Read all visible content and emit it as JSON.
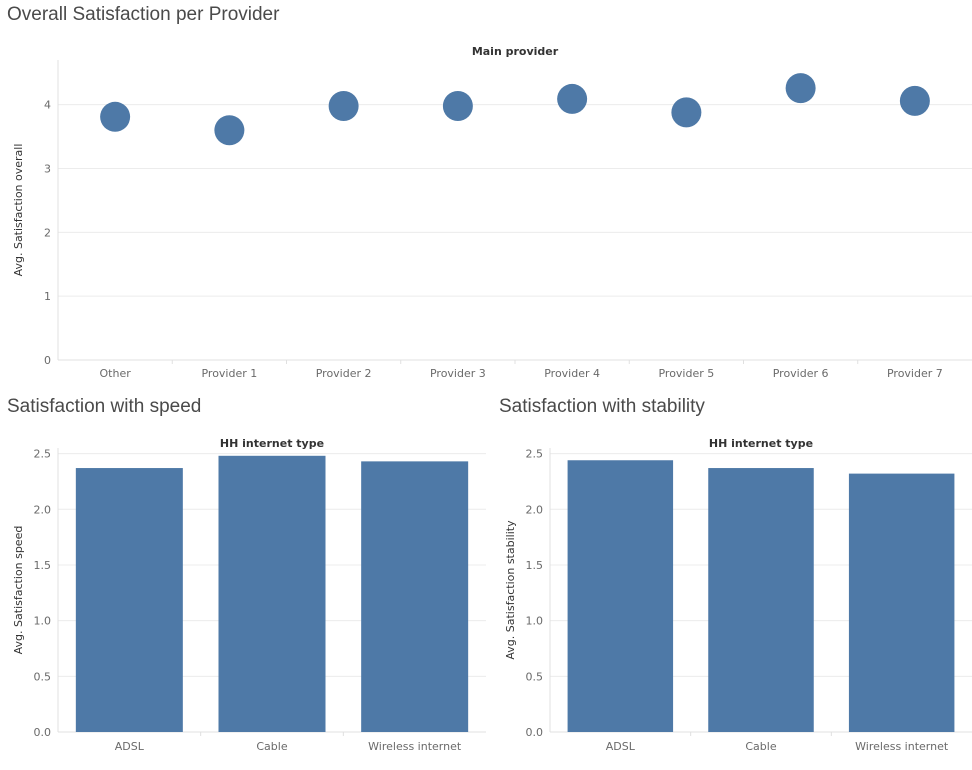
{
  "chart_data": [
    {
      "type": "scatter",
      "title": "Overall Satisfaction per Provider",
      "header": "Main provider",
      "ylabel": "Avg. Satisfaction overall",
      "categories": [
        "Other",
        "Provider 1",
        "Provider 2",
        "Provider 3",
        "Provider 4",
        "Provider 5",
        "Provider 6",
        "Provider 7"
      ],
      "values": [
        3.81,
        3.6,
        3.98,
        3.98,
        4.09,
        3.88,
        4.26,
        4.06
      ],
      "ylim": [
        0,
        4.7
      ],
      "yticks": [
        "0",
        "1",
        "2",
        "3",
        "4"
      ],
      "grid": true,
      "color": "#4e79a7"
    },
    {
      "type": "bar",
      "title": "Satisfaction with speed",
      "header": "HH internet type",
      "ylabel": "Avg. Satisfaction speed",
      "categories": [
        "ADSL",
        "Cable",
        "Wireless internet"
      ],
      "values": [
        2.37,
        2.48,
        2.43
      ],
      "ylim": [
        0,
        2.55
      ],
      "yticks": [
        "0.0",
        "0.5",
        "1.0",
        "1.5",
        "2.0",
        "2.5"
      ],
      "grid": true,
      "color": "#4e79a7"
    },
    {
      "type": "bar",
      "title": "Satisfaction with stability",
      "header": "HH internet type",
      "ylabel": "Avg. Satisfaction stability",
      "categories": [
        "ADSL",
        "Cable",
        "Wireless internet"
      ],
      "values": [
        2.44,
        2.37,
        2.32
      ],
      "ylim": [
        0,
        2.55
      ],
      "yticks": [
        "0.0",
        "0.5",
        "1.0",
        "1.5",
        "2.0",
        "2.5"
      ],
      "grid": true,
      "color": "#4e79a7"
    }
  ]
}
